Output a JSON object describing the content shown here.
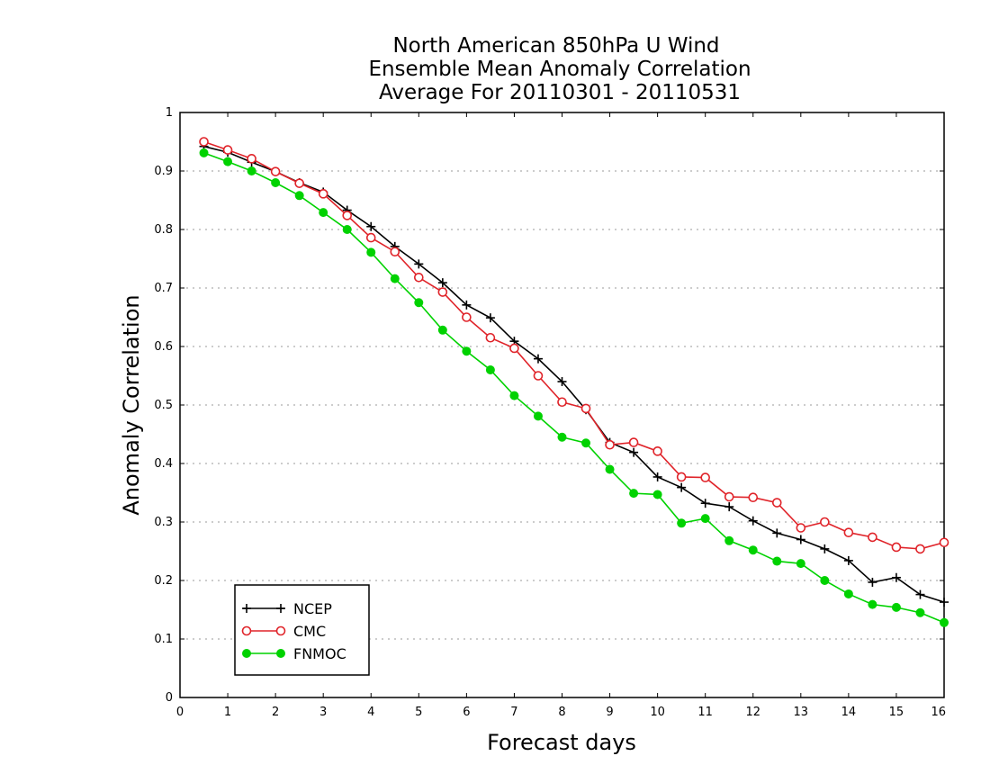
{
  "chart_data": {
    "type": "line",
    "title_lines": [
      "North American 850hPa U Wind",
      "Ensemble Mean Anomaly Correlation",
      "Average For 20110301 - 20110531"
    ],
    "xlabel": "Forecast days",
    "ylabel": "Anomaly Correlation",
    "xlim": [
      0,
      16
    ],
    "ylim": [
      0,
      1
    ],
    "x_ticks": [
      "0",
      "1",
      "2",
      "3",
      "4",
      "5",
      "6",
      "7",
      "8",
      "9",
      "10",
      "11",
      "12",
      "13",
      "14",
      "15",
      "16"
    ],
    "y_ticks": [
      "0",
      "0.1",
      "0.2",
      "0.3",
      "0.4",
      "0.5",
      "0.6",
      "0.7",
      "0.8",
      "0.9",
      "1"
    ],
    "grid": "horizontal dotted",
    "legend_position": "bottom-left",
    "x": [
      0.5,
      1,
      1.5,
      2,
      2.5,
      3,
      3.5,
      4,
      4.5,
      5,
      5.5,
      6,
      6.5,
      7,
      7.5,
      8,
      8.5,
      9,
      9.5,
      10,
      10.5,
      11,
      11.5,
      12,
      12.5,
      13,
      13.5,
      14,
      14.5,
      15,
      15.5,
      16
    ],
    "series": [
      {
        "name": "NCEP",
        "color": "#000000",
        "marker": "plus",
        "values": [
          0.942,
          0.932,
          0.915,
          0.899,
          0.88,
          0.864,
          0.833,
          0.805,
          0.771,
          0.741,
          0.709,
          0.671,
          0.649,
          0.609,
          0.579,
          0.54,
          0.492,
          0.436,
          0.419,
          0.377,
          0.359,
          0.332,
          0.326,
          0.302,
          0.281,
          0.27,
          0.254,
          0.234,
          0.197,
          0.205,
          0.176,
          0.163
        ]
      },
      {
        "name": "CMC",
        "color": "#e0242a",
        "marker": "open-circle",
        "values": [
          0.95,
          0.936,
          0.921,
          0.899,
          0.879,
          0.861,
          0.824,
          0.786,
          0.762,
          0.718,
          0.693,
          0.65,
          0.615,
          0.597,
          0.55,
          0.505,
          0.494,
          0.432,
          0.436,
          0.421,
          0.377,
          0.376,
          0.343,
          0.342,
          0.333,
          0.29,
          0.3,
          0.282,
          0.274,
          0.257,
          0.254,
          0.265
        ]
      },
      {
        "name": "FNMOC",
        "color": "#00d200",
        "marker": "filled-circle",
        "values": [
          0.931,
          0.916,
          0.9,
          0.88,
          0.858,
          0.829,
          0.8,
          0.761,
          0.716,
          0.675,
          0.628,
          0.592,
          0.56,
          0.516,
          0.481,
          0.445,
          0.435,
          0.39,
          0.349,
          0.347,
          0.298,
          0.306,
          0.268,
          0.252,
          0.233,
          0.229,
          0.2,
          0.177,
          0.159,
          0.154,
          0.145,
          0.128
        ]
      }
    ]
  }
}
